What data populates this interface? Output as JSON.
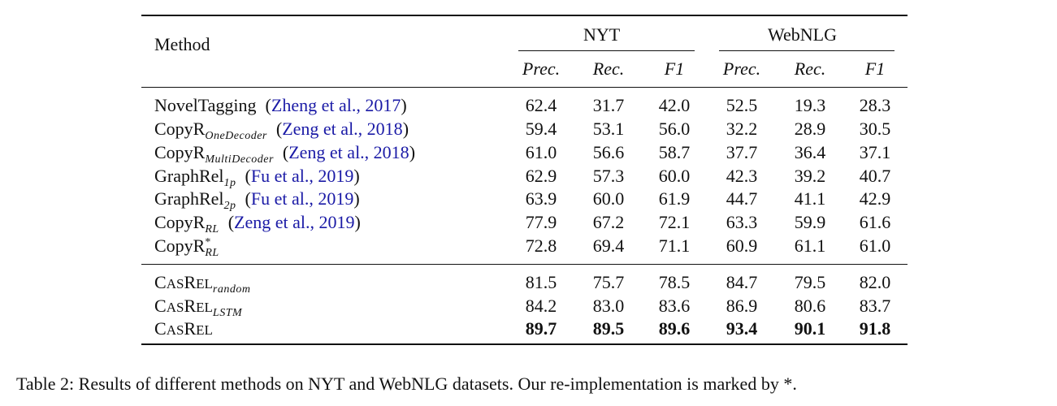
{
  "table": {
    "header": {
      "method": "Method",
      "groups": [
        "NYT",
        "WebNLG"
      ],
      "metrics": [
        "Prec.",
        "Rec.",
        "F1",
        "Prec.",
        "Rec.",
        "F1"
      ]
    },
    "baseline_rows": [
      {
        "name": "NovelTagging",
        "sub": "",
        "sup": "",
        "cite": "Zheng et al., 2017",
        "values": [
          "62.4",
          "31.7",
          "42.0",
          "52.5",
          "19.3",
          "28.3"
        ]
      },
      {
        "name": "CopyR",
        "sub": "OneDecoder",
        "sup": "",
        "cite": "Zeng et al., 2018",
        "values": [
          "59.4",
          "53.1",
          "56.0",
          "32.2",
          "28.9",
          "30.5"
        ]
      },
      {
        "name": "CopyR",
        "sub": "MultiDecoder",
        "sup": "",
        "cite": "Zeng et al., 2018",
        "values": [
          "61.0",
          "56.6",
          "58.7",
          "37.7",
          "36.4",
          "37.1"
        ]
      },
      {
        "name": "GraphRel",
        "sub": "1p",
        "sup": "",
        "cite": "Fu et al., 2019",
        "values": [
          "62.9",
          "57.3",
          "60.0",
          "42.3",
          "39.2",
          "40.7"
        ]
      },
      {
        "name": "GraphRel",
        "sub": "2p",
        "sup": "",
        "cite": "Fu et al., 2019",
        "values": [
          "63.9",
          "60.0",
          "61.9",
          "44.7",
          "41.1",
          "42.9"
        ]
      },
      {
        "name": "CopyR",
        "sub": "RL",
        "sup": "",
        "cite": "Zeng et al., 2019",
        "values": [
          "77.9",
          "67.2",
          "72.1",
          "63.3",
          "59.9",
          "61.6"
        ]
      },
      {
        "name": "CopyR",
        "sub": "RL",
        "sup": "*",
        "cite": "",
        "values": [
          "72.8",
          "69.4",
          "71.1",
          "60.9",
          "61.1",
          "61.0"
        ]
      }
    ],
    "ours_rows": [
      {
        "name": "CasRel",
        "sub": "random",
        "bold": false,
        "values": [
          "81.5",
          "75.7",
          "78.5",
          "84.7",
          "79.5",
          "82.0"
        ]
      },
      {
        "name": "CasRel",
        "sub": "LSTM",
        "bold": false,
        "values": [
          "84.2",
          "83.0",
          "83.6",
          "86.9",
          "80.6",
          "83.7"
        ]
      },
      {
        "name": "CasRel",
        "sub": "",
        "bold": true,
        "values": [
          "89.7",
          "89.5",
          "89.6",
          "93.4",
          "90.1",
          "91.8"
        ]
      }
    ]
  },
  "caption": "Table 2: Results of different methods on NYT and WebNLG datasets. Our re-implementation is marked by *."
}
